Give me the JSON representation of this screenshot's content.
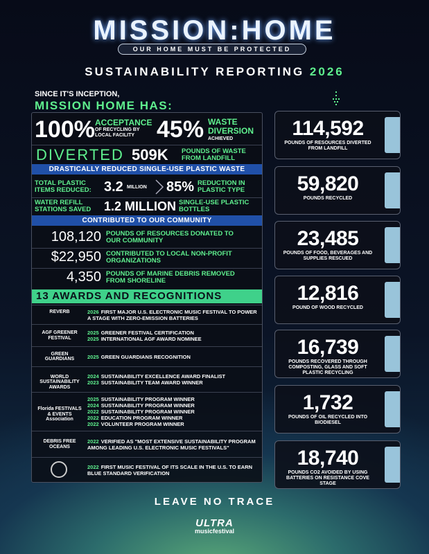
{
  "header": {
    "title": "MISSION:HOME",
    "tagline": "OUR HOME MUST BE PROTECTED",
    "report_title": "SUSTAINABILITY REPORTING",
    "report_year": "2026"
  },
  "intro": {
    "line1": "SINCE IT'S INCEPTION,",
    "line2": "MISSION HOME HAS:"
  },
  "highlights": {
    "acceptance": {
      "value": "100%",
      "title": "ACCEPTANCE",
      "note": "OF RECYCLING BY LOCAL FACILITY"
    },
    "diversion": {
      "value": "45%",
      "title": "WASTE DIVERSION",
      "note": "ACHIEVED"
    },
    "diverted": {
      "label": "DIVERTED",
      "value": "509K",
      "note": "POUNDS OF WASTE FROM LANDFILL"
    }
  },
  "plastic": {
    "banner": "DRASTICALLY REDUCED SINGLE-USE PLASTIC WASTE",
    "items_label": "TOTAL PLASTIC ITEMS REDUCED:",
    "items_value": "3.2",
    "items_unit": "MILLION",
    "type_value": "85%",
    "type_label": "REDUCTION IN PLASTIC TYPE",
    "water_label": "WATER REFILL STATIONS SAVED",
    "water_value": "1.2 MILLION",
    "water_note": "SINGLE-USE PLASTIC BOTTLES"
  },
  "community": {
    "banner": "CONTRIBUTED TO OUR COMMUNITY",
    "rows": [
      {
        "value": "108,120",
        "text": "POUNDS OF RESOURCES DONATED TO OUR COMMUNITY"
      },
      {
        "value": "$22,950",
        "text": "CONTRIBUTED TO LOCAL NON-PROFIT ORGANIZATIONS"
      },
      {
        "value": "4,350",
        "text": "POUNDS OF MARINE DEBRIS REMOVED FROM SHORELINE"
      }
    ]
  },
  "awards": {
    "title": "13 AWARDS AND RECOGNITIONS",
    "items": [
      {
        "logo": "REVERB",
        "lines": [
          {
            "year": "2026",
            "text": "FIRST MAJOR U.S. ELECTRONIC MUSIC FESTIVAL TO POWER A STAGE WITH ZERO-EMISSION BATTERIES"
          }
        ]
      },
      {
        "logo": "AGF GREENER FESTIVAL",
        "lines": [
          {
            "year": "2025",
            "text": "GREENER FESTIVAL CERTIFICATION"
          },
          {
            "year": "2025",
            "text": "INTERNATIONAL AGF AWARD NOMINEE"
          }
        ]
      },
      {
        "logo": "GREEN GUARDIANS",
        "lines": [
          {
            "year": "2025",
            "text": "GREEN GUARDIANS RECOGNITION"
          }
        ]
      },
      {
        "logo": "WORLD SUSTAINABILITY AWARDS",
        "lines": [
          {
            "year": "2024",
            "text": "SUSTAINABILITY EXCELLENCE AWARD FINALIST"
          },
          {
            "year": "2023",
            "text": "SUSTAINABILITY TEAM AWARD WINNER"
          }
        ]
      },
      {
        "logo": "Florida FESTIVALS & EVENTS Association",
        "lines": [
          {
            "year": "2025",
            "text": "SUSTAINABILITY PROGRAM WINNER"
          },
          {
            "year": "2024",
            "text": "SUSTAINABILITY PROGRAM WINNER"
          },
          {
            "year": "2022",
            "text": "SUSTAINABILITY PROGRAM WINNER"
          },
          {
            "year": "2022",
            "text": "EDUCATION PROGRAM WINNER"
          },
          {
            "year": "2022",
            "text": "VOLUNTEER PROGRAM WINNER"
          }
        ]
      },
      {
        "logo": "DEBRIS FREE OCEANS",
        "lines": [
          {
            "year": "2022",
            "text": "VERIFIED AS \"MOST EXTENSIVE SUSTAINABILITY PROGRAM AMONG LEADING U.S. ELECTRONIC MUSIC FESTIVALS\""
          }
        ]
      },
      {
        "logo": null,
        "lines": [
          {
            "year": "2022",
            "text": "FIRST MUSIC FESTIVAL OF ITS SCALE IN THE U.S. TO EARN BLUE STANDARD VERIFICATION"
          }
        ]
      }
    ]
  },
  "cards": [
    {
      "value": "114,592",
      "label": "POUNDS OF RESOURCES DIVERTED FROM LANDFILL"
    },
    {
      "value": "59,820",
      "label": "POUNDS RECYCLED"
    },
    {
      "value": "23,485",
      "label": "POUNDS OF FOOD, BEVERAGES AND SUPPLIES RESCUED"
    },
    {
      "value": "12,816",
      "label": "POUND OF WOOD RECYCLED"
    },
    {
      "value": "16,739",
      "label": "POUNDS RECOVERED THROUGH COMPOSTING, GLASS AND SOFT PLASTIC RECYCLING"
    },
    {
      "value": "1,732",
      "label": "POUNDS OF OIL RECYCLED INTO BIODIESEL"
    },
    {
      "value": "18,740",
      "label": "POUNDS CO2 AVOIDED BY USING BATTERIES ON RESISTANCE COVE STAGE"
    }
  ],
  "footer": {
    "slogan": "LEAVE NO TRACE",
    "brand": "ULTRA",
    "brand_sub": "musicfestival"
  }
}
